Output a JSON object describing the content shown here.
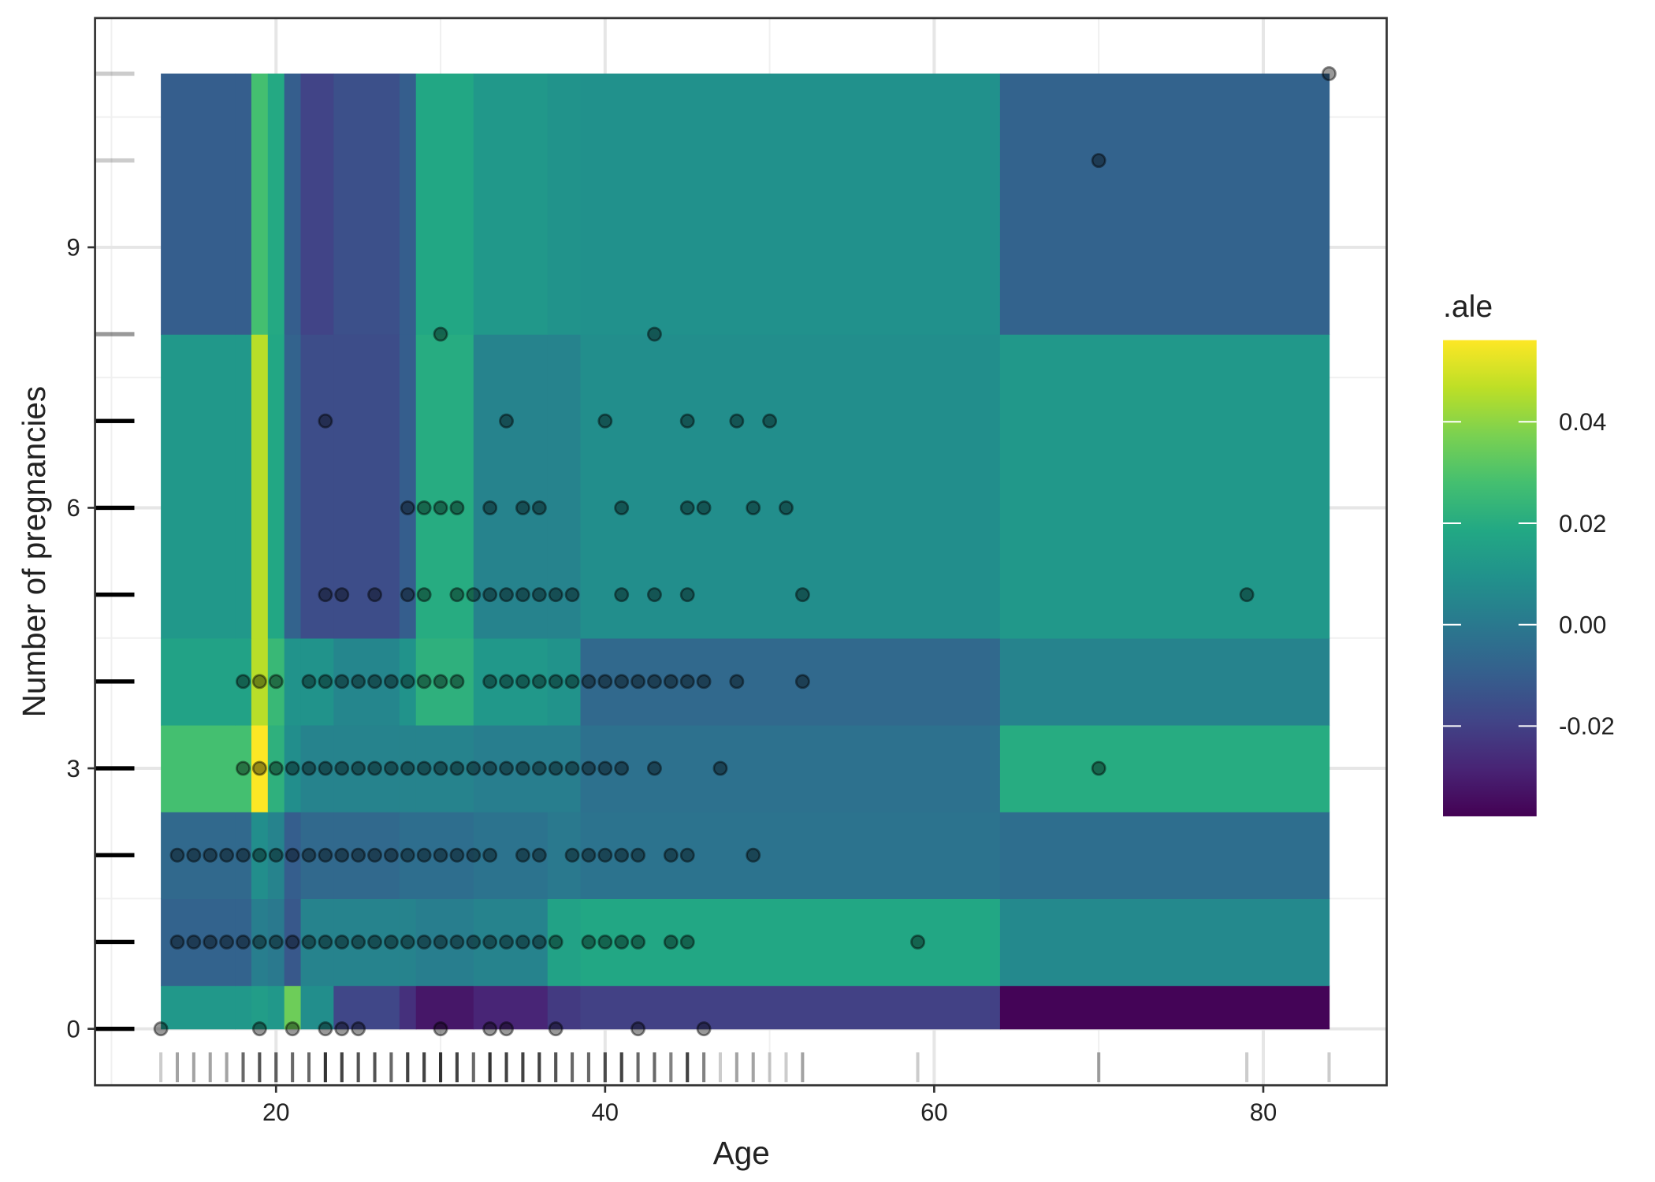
{
  "chart_data": {
    "type": "heatmap",
    "x_label": "Age",
    "y_label": "Number of pregnancies",
    "legend_title": ".ale",
    "xlim": [
      9,
      87.5
    ],
    "ylim": [
      -0.65,
      11.64
    ],
    "xticks": [
      20,
      40,
      60,
      80
    ],
    "yticks": [
      0,
      3,
      6,
      9
    ],
    "x_minor_grid": [
      10,
      30,
      50,
      70
    ],
    "y_minor_grid": [
      1.5,
      4.5,
      7.5,
      10.5
    ],
    "grid": true,
    "x_edges": [
      13,
      17.5,
      18.5,
      19.5,
      20.5,
      21.5,
      23.5,
      27.5,
      28.5,
      32,
      36.5,
      38.5,
      64,
      84
    ],
    "y_edges": [
      0,
      0.5,
      1.5,
      2.5,
      3.5,
      4.5,
      8,
      11
    ],
    "z": [
      [
        0.012,
        0.012,
        0.014,
        0.012,
        0.035,
        0.008,
        -0.018,
        -0.025,
        -0.032,
        -0.028,
        -0.022,
        -0.02,
        -0.037
      ],
      [
        -0.008,
        -0.008,
        0.002,
        0,
        -0.012,
        0.004,
        0.004,
        0.004,
        0.002,
        0.004,
        0.016,
        0.018,
        0.006
      ],
      [
        -0.006,
        -0.006,
        0.008,
        0.004,
        -0.01,
        -0.006,
        -0.006,
        -0.004,
        -0.004,
        -0.002,
        0,
        -0.002,
        -0.004
      ],
      [
        0.028,
        0.028,
        0.056,
        0.022,
        0.008,
        0.004,
        0.004,
        0.004,
        0.004,
        0.002,
        0.002,
        -0.003,
        0.02
      ],
      [
        0.016,
        0.016,
        0.046,
        0.025,
        0.01,
        0.01,
        0.005,
        0.01,
        0.022,
        0.012,
        0.01,
        -0.006,
        0.004
      ],
      [
        0.012,
        0.012,
        0.046,
        0.018,
        -0.008,
        -0.016,
        -0.016,
        -0.01,
        0.02,
        0.004,
        0.004,
        0.008,
        0.012
      ],
      [
        -0.01,
        -0.01,
        0.028,
        0.019,
        -0.01,
        -0.019,
        -0.015,
        -0.01,
        0.018,
        0.012,
        0.01,
        0.009,
        -0.008
      ]
    ],
    "zlim": [
      -0.0378,
      0.0561
    ],
    "zticks": [
      -0.02,
      {
        "value": 0,
        "label": "0.00"
      },
      0.02,
      0.04
    ],
    "colorscale": [
      "#440154",
      "#482475",
      "#414487",
      "#355f8d",
      "#2a788e",
      "#21918c",
      "#22a884",
      "#44bf70",
      "#7ad151",
      "#bddf26",
      "#fde725"
    ],
    "points": [
      {
        "y": 0,
        "x": [
          13,
          19,
          21,
          23,
          24,
          25,
          30,
          33,
          34,
          37,
          42,
          46
        ]
      },
      {
        "y": 1,
        "x": [
          14,
          15,
          16,
          17,
          18,
          19,
          20,
          21,
          22,
          23,
          24,
          25,
          26,
          27,
          28,
          29,
          30,
          31,
          32,
          33,
          34,
          35,
          36,
          37,
          39,
          40,
          41,
          42,
          44,
          45,
          59
        ]
      },
      {
        "y": 2,
        "x": [
          14,
          15,
          16,
          17,
          18,
          19,
          20,
          21,
          22,
          23,
          24,
          25,
          26,
          27,
          28,
          29,
          30,
          31,
          32,
          33,
          35,
          36,
          38,
          39,
          40,
          41,
          42,
          44,
          45,
          49
        ]
      },
      {
        "y": 3,
        "x": [
          18,
          19,
          20,
          21,
          22,
          23,
          24,
          25,
          26,
          27,
          28,
          29,
          30,
          31,
          32,
          33,
          34,
          35,
          36,
          37,
          38,
          39,
          40,
          41,
          43,
          47,
          70
        ]
      },
      {
        "y": 4,
        "x": [
          18,
          19,
          20,
          22,
          23,
          24,
          25,
          26,
          27,
          28,
          29,
          30,
          31,
          33,
          34,
          35,
          36,
          37,
          38,
          39,
          40,
          41,
          42,
          43,
          44,
          45,
          46,
          48,
          52
        ]
      },
      {
        "y": 5,
        "x": [
          23,
          24,
          26,
          28,
          29,
          31,
          32,
          33,
          34,
          35,
          36,
          37,
          38,
          41,
          43,
          45,
          52,
          79
        ]
      },
      {
        "y": 6,
        "x": [
          28,
          29,
          30,
          31,
          33,
          35,
          36,
          41,
          45,
          46,
          49,
          51
        ]
      },
      {
        "y": 7,
        "x": [
          23,
          34,
          40,
          45,
          48,
          50
        ]
      },
      {
        "y": 8,
        "x": [
          30,
          43
        ]
      },
      {
        "y": 10,
        "x": [
          70
        ]
      },
      {
        "y": 11,
        "x": [
          84
        ]
      }
    ]
  }
}
